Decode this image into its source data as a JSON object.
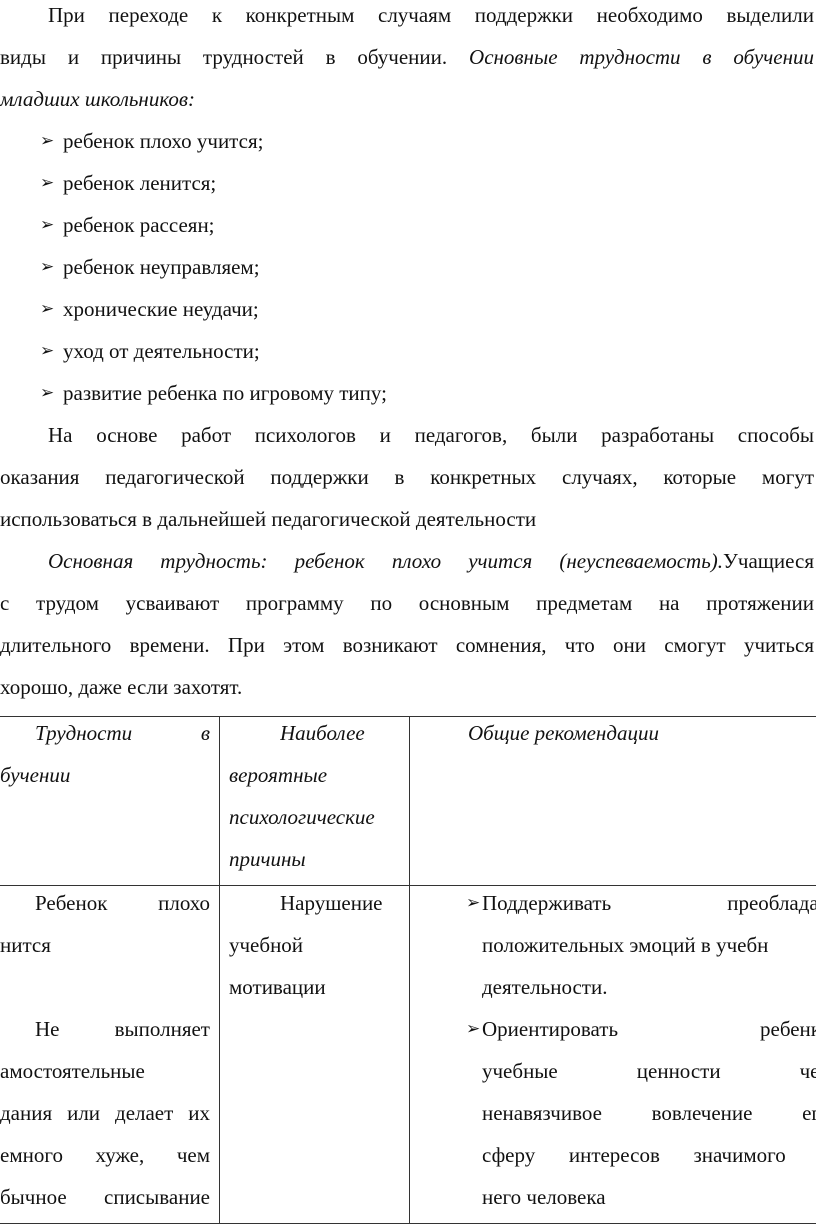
{
  "document": {
    "paragraphs_top": [
      {
        "lines": [
          {
            "indent": true,
            "justify": true,
            "segs": [
              {
                "t": "При переходе к конкретным случаям поддержки необходимо выделили"
              }
            ]
          },
          {
            "justify": true,
            "segs": [
              {
                "t": "виды и причины трудностей в обучении. "
              },
              {
                "t": "Основные трудности в обучении",
                "i": true
              }
            ]
          },
          {
            "segs": [
              {
                "t": "младших школьников:",
                "i": true
              }
            ]
          }
        ]
      }
    ],
    "bullets": [
      "ребенок плохо учится;",
      "ребенок ленится;",
      "ребенок рассеян;",
      "ребенок неуправляем;",
      "хронические неудачи;",
      "уход от деятельности;",
      "развитие ребенка по игровому типу;"
    ],
    "paragraphs_bottom": [
      {
        "lines": [
          {
            "indent": true,
            "justify": true,
            "segs": [
              {
                "t": "На основе работ психологов и педагогов,  были разработаны способы"
              }
            ]
          },
          {
            "justify": true,
            "segs": [
              {
                "t": "оказания педагогической поддержки в конкретных случаях, которые могут"
              }
            ]
          },
          {
            "segs": [
              {
                "t": "использоваться в дальнейшей педагогической деятельности"
              }
            ]
          }
        ]
      },
      {
        "lines": [
          {
            "indent": true,
            "justify": true,
            "segs": [
              {
                "t": "Основная трудность: ребенок плохо учится (неуспеваемость).",
                "i": true
              },
              {
                "t": "Учащиеся"
              }
            ]
          },
          {
            "justify": true,
            "segs": [
              {
                "t": "с трудом усваивают программу по основным предметам на протяжении"
              }
            ]
          },
          {
            "justify": true,
            "segs": [
              {
                "t": "длительного времени. При этом возникают сомнения, что они смогут учиться"
              }
            ]
          },
          {
            "segs": [
              {
                "t": "хорошо, даже если захотят."
              }
            ]
          }
        ]
      }
    ]
  },
  "table": {
    "header": [
      {
        "lines": [
          {
            "indent": true,
            "justify": true,
            "i": true,
            "t": "Трудности в"
          },
          {
            "i": true,
            "t": "бучении"
          }
        ]
      },
      {
        "lines": [
          {
            "indent": true,
            "justify": true,
            "i": true,
            "t": "Наиболее"
          },
          {
            "i": true,
            "t": "вероятные"
          },
          {
            "i": true,
            "t": "психологические"
          },
          {
            "i": true,
            "t": "причины"
          }
        ]
      },
      {
        "lines": [
          {
            "i": true,
            "t": "Общие рекомендации"
          }
        ]
      }
    ],
    "row1": {
      "difficulty": [
        {
          "indent": true,
          "justify": true,
          "t": "Ребенок плохо"
        },
        {
          "t": "нится"
        },
        {
          "t": ""
        },
        {
          "indent": true,
          "justify": true,
          "t": "Не выполняет"
        },
        {
          "t": "амостоятельные"
        },
        {
          "justify": true,
          "t": "дания или делает их"
        },
        {
          "justify": true,
          "t": "емного хуже, чем"
        },
        {
          "justify": true,
          "t": "бычное списывание"
        }
      ],
      "causes": [
        {
          "indent": true,
          "justify": true,
          "t": "Нарушение"
        },
        {
          "t": "учебной"
        },
        {
          "t": "мотивации"
        }
      ],
      "recommendations": [
        {
          "bullet": true,
          "justify": true,
          "t": "Поддерживать преобладан"
        },
        {
          "t": "положительных эмоций в учебн"
        },
        {
          "t": "деятельности."
        },
        {
          "bullet": true,
          "justify": true,
          "t": "Ориентировать ребенка"
        },
        {
          "justify": true,
          "t": "учебные ценности чер"
        },
        {
          "justify": true,
          "t": "ненавязчивое вовлечение его"
        },
        {
          "justify": true,
          "t": "сферу интересов значимого д"
        },
        {
          "t": "него человека"
        }
      ]
    },
    "bullet_icon": "arrowhead-bullet-icon"
  }
}
